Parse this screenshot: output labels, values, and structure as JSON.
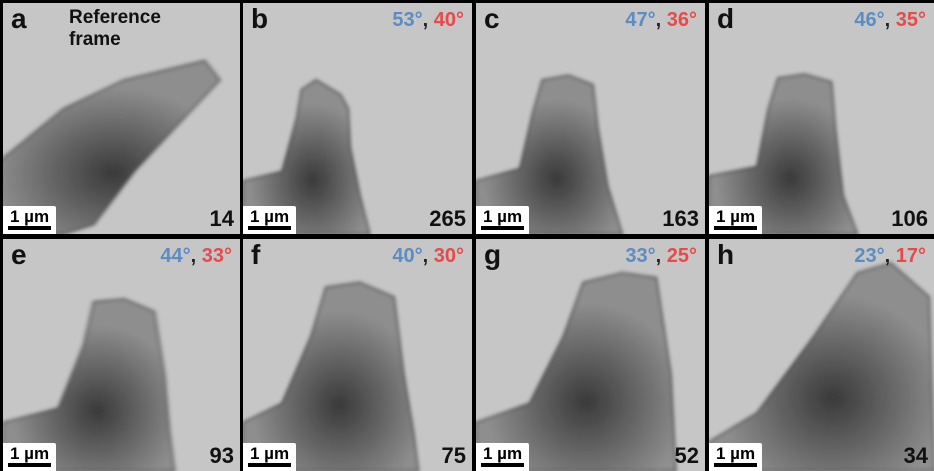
{
  "panels": [
    {
      "letter": "a",
      "caption": [
        "Reference",
        "frame"
      ],
      "scale": "1 µm",
      "count": "14"
    },
    {
      "letter": "b",
      "angles": [
        "53°",
        ", ",
        "40°"
      ],
      "scale": "1 µm",
      "count": "265"
    },
    {
      "letter": "c",
      "angles": [
        "47°",
        ", ",
        "36°"
      ],
      "scale": "1 µm",
      "count": "163"
    },
    {
      "letter": "d",
      "angles": [
        "46°",
        ", ",
        "35°"
      ],
      "scale": "1 µm",
      "count": "106"
    },
    {
      "letter": "e",
      "angles": [
        "44°",
        ", ",
        "33°"
      ],
      "scale": "1 µm",
      "count": "93"
    },
    {
      "letter": "f",
      "angles": [
        "40°",
        ", ",
        "30°"
      ],
      "scale": "1 µm",
      "count": "75"
    },
    {
      "letter": "g",
      "angles": [
        "33°",
        ", ",
        "25°"
      ],
      "scale": "1 µm",
      "count": "52"
    },
    {
      "letter": "h",
      "angles": [
        "23°",
        ", ",
        "17°"
      ],
      "scale": "1 µm",
      "count": "34"
    }
  ]
}
